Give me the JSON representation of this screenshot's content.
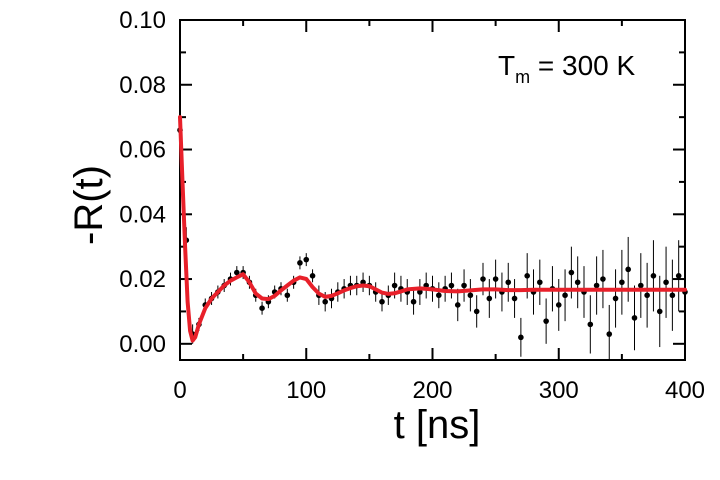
{
  "chart_data": {
    "type": "scatter",
    "xlabel": "t [ns]",
    "ylabel": "-R(t)",
    "xlim": [
      0,
      400
    ],
    "ylim": [
      -0.005,
      0.1
    ],
    "x_ticks": [
      0,
      100,
      200,
      300,
      400
    ],
    "x_tick_labels": [
      "0",
      "100",
      "200",
      "300",
      "400"
    ],
    "y_ticks": [
      0.0,
      0.02,
      0.04,
      0.06,
      0.08,
      0.1
    ],
    "y_tick_labels": [
      "0.00",
      "0.02",
      "0.04",
      "0.06",
      "0.08",
      "0.10"
    ],
    "annotation": {
      "main": "T",
      "sub": "m",
      "rest": " = 300 K"
    },
    "grid": false,
    "legend": "none",
    "colors": {
      "points": "#000000",
      "fit": "#e8202a",
      "error_bars": "#000000"
    },
    "series": [
      {
        "kind": "points_with_error_bars",
        "x": [
          0,
          5,
          10,
          15,
          20,
          25,
          30,
          35,
          40,
          45,
          50,
          55,
          60,
          65,
          70,
          75,
          80,
          85,
          90,
          95,
          100,
          105,
          110,
          115,
          120,
          125,
          130,
          135,
          140,
          145,
          150,
          155,
          160,
          165,
          170,
          175,
          180,
          185,
          190,
          195,
          200,
          205,
          210,
          215,
          220,
          225,
          230,
          235,
          240,
          245,
          250,
          255,
          260,
          265,
          270,
          275,
          280,
          285,
          290,
          295,
          300,
          305,
          310,
          315,
          320,
          325,
          330,
          335,
          340,
          345,
          350,
          355,
          360,
          365,
          370,
          375,
          380,
          385,
          390,
          395,
          400
        ],
        "y": [
          0.066,
          0.032,
          0.003,
          0.006,
          0.012,
          0.014,
          0.016,
          0.018,
          0.02,
          0.022,
          0.022,
          0.019,
          0.015,
          0.011,
          0.013,
          0.016,
          0.017,
          0.015,
          0.019,
          0.025,
          0.026,
          0.021,
          0.015,
          0.013,
          0.014,
          0.016,
          0.017,
          0.018,
          0.018,
          0.019,
          0.018,
          0.016,
          0.013,
          0.015,
          0.018,
          0.017,
          0.016,
          0.013,
          0.016,
          0.018,
          0.017,
          0.015,
          0.017,
          0.018,
          0.012,
          0.018,
          0.015,
          0.01,
          0.02,
          0.014,
          0.02,
          0.016,
          0.019,
          0.014,
          0.002,
          0.021,
          0.016,
          0.019,
          0.007,
          0.017,
          0.012,
          0.015,
          0.022,
          0.019,
          0.016,
          0.006,
          0.018,
          0.02,
          0.003,
          0.014,
          0.019,
          0.023,
          0.008,
          0.018,
          0.015,
          0.021,
          0.01,
          0.019,
          0.015,
          0.021,
          0.016
        ],
        "err": [
          0.004,
          0.004,
          0.003,
          0.002,
          0.002,
          0.002,
          0.002,
          0.002,
          0.002,
          0.002,
          0.002,
          0.002,
          0.002,
          0.002,
          0.002,
          0.002,
          0.002,
          0.002,
          0.002,
          0.002,
          0.002,
          0.002,
          0.003,
          0.003,
          0.003,
          0.003,
          0.003,
          0.003,
          0.003,
          0.003,
          0.003,
          0.003,
          0.003,
          0.003,
          0.004,
          0.004,
          0.004,
          0.004,
          0.004,
          0.004,
          0.004,
          0.004,
          0.004,
          0.004,
          0.005,
          0.005,
          0.005,
          0.005,
          0.005,
          0.006,
          0.006,
          0.006,
          0.006,
          0.006,
          0.006,
          0.007,
          0.007,
          0.007,
          0.007,
          0.007,
          0.008,
          0.008,
          0.008,
          0.008,
          0.008,
          0.009,
          0.009,
          0.009,
          0.009,
          0.009,
          0.01,
          0.01,
          0.01,
          0.01,
          0.01,
          0.011,
          0.011,
          0.011,
          0.011,
          0.011,
          0.012
        ]
      },
      {
        "kind": "fit_curve",
        "x": [
          0,
          2,
          4,
          6,
          8,
          10,
          12,
          15,
          20,
          25,
          30,
          35,
          40,
          45,
          50,
          55,
          60,
          65,
          70,
          75,
          80,
          85,
          90,
          95,
          100,
          105,
          110,
          115,
          120,
          125,
          130,
          135,
          140,
          145,
          150,
          155,
          160,
          165,
          170,
          175,
          180,
          190,
          200,
          210,
          220,
          230,
          240,
          250,
          260,
          270,
          280,
          300,
          320,
          340,
          360,
          380,
          400
        ],
        "y": [
          0.07,
          0.05,
          0.03,
          0.013,
          0.004,
          0.001,
          0.002,
          0.006,
          0.011,
          0.014,
          0.016,
          0.018,
          0.0195,
          0.0205,
          0.0215,
          0.019,
          0.0155,
          0.014,
          0.0138,
          0.0148,
          0.0165,
          0.018,
          0.0195,
          0.0205,
          0.02,
          0.0175,
          0.0155,
          0.0145,
          0.0148,
          0.0156,
          0.0165,
          0.0172,
          0.0178,
          0.018,
          0.0178,
          0.0168,
          0.0158,
          0.0154,
          0.0156,
          0.0162,
          0.0168,
          0.0171,
          0.0168,
          0.0163,
          0.0162,
          0.0165,
          0.0168,
          0.0168,
          0.0166,
          0.0166,
          0.0167,
          0.0167,
          0.0167,
          0.0167,
          0.0167,
          0.0167,
          0.0167
        ]
      }
    ]
  }
}
